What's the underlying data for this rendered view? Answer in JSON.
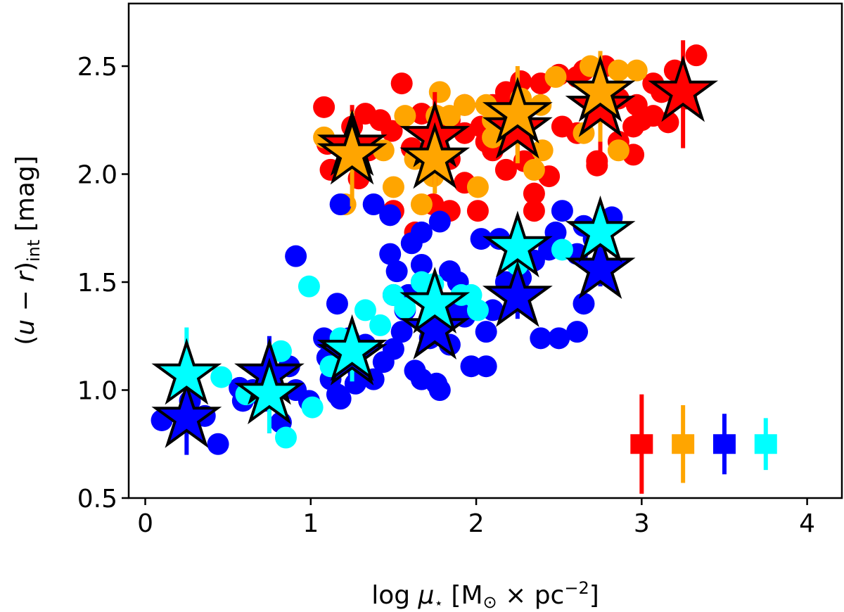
{
  "chart_data": {
    "type": "scatter",
    "title": "",
    "xlabel": {
      "prefix": "log ",
      "mu": "μ",
      "star": "⋆",
      "open": "  [M",
      "sun": "⊙",
      "mid": " × pc",
      "exp": "−2",
      "close": "]"
    },
    "ylabel": {
      "open": "(",
      "u": "u",
      "minus": " − ",
      "r": "r",
      "close": ")",
      "sub": "int",
      "unit": " [mag]"
    },
    "xlim": [
      -0.1,
      4.21
    ],
    "ylim": [
      0.5,
      2.79
    ],
    "xticks": [
      0,
      1,
      2,
      3,
      4
    ],
    "xtick_labels": [
      "0",
      "1",
      "2",
      "3",
      "4"
    ],
    "yticks": [
      0.5,
      1.0,
      1.5,
      2.0,
      2.5
    ],
    "ytick_labels": [
      "0.5",
      "1.0",
      "1.5",
      "2.0",
      "2.5"
    ],
    "grid": false,
    "legend": "none",
    "colors": {
      "red": "#ff0000",
      "orange": "#ffa500",
      "blue": "#0000ff",
      "cyan": "#00ffff"
    },
    "series": [
      {
        "color": "red",
        "points": [
          [
            1.08,
            2.31
          ],
          [
            1.33,
            2.28
          ],
          [
            1.49,
            2.2
          ],
          [
            1.61,
            2.12
          ],
          [
            1.84,
            2.07
          ],
          [
            1.93,
            2.19
          ],
          [
            2.06,
            2.15
          ],
          [
            2.1,
            2.11
          ],
          [
            2.18,
            2.02
          ],
          [
            2.29,
            2.06
          ],
          [
            2.35,
            1.91
          ],
          [
            2.52,
            2.22
          ],
          [
            2.61,
            2.19
          ],
          [
            2.73,
            2.06
          ],
          [
            2.86,
            2.15
          ],
          [
            2.95,
            2.22
          ],
          [
            3.07,
            2.27
          ],
          [
            3.16,
            2.24
          ],
          [
            3.27,
            2.35
          ],
          [
            3.33,
            2.55
          ],
          [
            3.07,
            2.42
          ],
          [
            3.0,
            2.25
          ],
          [
            2.78,
            2.5
          ],
          [
            2.65,
            2.48
          ],
          [
            2.44,
            1.99
          ],
          [
            2.35,
            1.83
          ],
          [
            2.18,
            2.38
          ],
          [
            2.1,
            2.32
          ],
          [
            1.93,
            2.32
          ],
          [
            1.84,
            2.25
          ],
          [
            1.67,
            2.28
          ],
          [
            1.5,
            1.83
          ],
          [
            1.63,
            1.73
          ],
          [
            1.74,
            1.86
          ],
          [
            1.84,
            1.83
          ],
          [
            2.01,
            1.83
          ],
          [
            1.12,
            2.02
          ],
          [
            1.42,
            2.25
          ],
          [
            1.29,
            1.98
          ],
          [
            2.5,
            2.46
          ],
          [
            2.61,
            2.45
          ],
          [
            2.86,
            2.35
          ],
          [
            2.97,
            2.32
          ],
          [
            1.1,
            2.14
          ],
          [
            1.25,
            2.22
          ],
          [
            2.27,
            2.43
          ],
          [
            2.39,
            2.42
          ],
          [
            2.73,
            2.04
          ],
          [
            3.2,
            2.48
          ],
          [
            3.12,
            2.38
          ],
          [
            1.55,
            2.42
          ],
          [
            2.95,
            2.09
          ],
          [
            2.03,
            2.22
          ],
          [
            1.35,
            2.11
          ],
          [
            1.93,
            1.96
          ]
        ],
        "medians": [
          [
            1.25,
            2.13,
            1.97,
            2.32
          ],
          [
            1.75,
            2.17,
            1.95,
            2.38
          ],
          [
            2.25,
            2.21,
            2.05,
            2.36
          ],
          [
            2.75,
            2.31,
            2.09,
            2.49
          ],
          [
            3.25,
            2.38,
            2.12,
            2.62
          ]
        ],
        "typical_error": {
          "x": 3.0,
          "y": 0.75,
          "low": 0.52,
          "high": 0.98
        }
      },
      {
        "color": "orange",
        "points": [
          [
            1.08,
            2.17
          ],
          [
            1.44,
            2.11
          ],
          [
            1.5,
            1.94
          ],
          [
            1.57,
            2.27
          ],
          [
            1.63,
            2.07
          ],
          [
            1.67,
            1.86
          ],
          [
            1.76,
            2.27
          ],
          [
            1.84,
            2.27
          ],
          [
            1.93,
            2.32
          ],
          [
            2.01,
            1.94
          ],
          [
            2.1,
            2.25
          ],
          [
            2.27,
            2.35
          ],
          [
            2.39,
            2.32
          ],
          [
            2.4,
            2.11
          ],
          [
            2.35,
            2.02
          ],
          [
            2.1,
            2.17
          ],
          [
            2.06,
            2.32
          ],
          [
            2.48,
            2.45
          ],
          [
            2.69,
            2.5
          ],
          [
            2.86,
            2.48
          ],
          [
            2.97,
            2.48
          ],
          [
            2.86,
            2.11
          ],
          [
            2.65,
            2.19
          ],
          [
            1.78,
            2.38
          ],
          [
            1.74,
            1.99
          ],
          [
            1.21,
            1.86
          ]
        ],
        "medians": [
          [
            1.25,
            2.09,
            1.85,
            2.29
          ],
          [
            1.75,
            2.07,
            1.91,
            2.22
          ],
          [
            2.25,
            2.28,
            2.05,
            2.5
          ],
          [
            2.75,
            2.38,
            2.15,
            2.57
          ]
        ],
        "typical_error": {
          "x": 3.25,
          "y": 0.75,
          "low": 0.57,
          "high": 0.93
        }
      },
      {
        "color": "blue",
        "points": [
          [
            0.1,
            0.86
          ],
          [
            0.44,
            0.75
          ],
          [
            0.36,
            0.88
          ],
          [
            0.27,
            0.95
          ],
          [
            0.91,
            1.0
          ],
          [
            0.99,
            0.95
          ],
          [
            1.08,
            1.24
          ],
          [
            1.12,
            1.05
          ],
          [
            1.16,
            1.14
          ],
          [
            1.23,
            1.24
          ],
          [
            1.29,
            1.08
          ],
          [
            1.38,
            1.05
          ],
          [
            1.44,
            1.13
          ],
          [
            1.5,
            1.19
          ],
          [
            1.55,
            1.27
          ],
          [
            1.57,
            1.37
          ],
          [
            1.59,
            1.44
          ],
          [
            1.63,
            1.09
          ],
          [
            1.67,
            1.05
          ],
          [
            1.72,
            1.24
          ],
          [
            1.76,
            1.03
          ],
          [
            1.78,
            1.0
          ],
          [
            1.84,
            1.21
          ],
          [
            1.89,
            1.37
          ],
          [
            1.93,
            1.34
          ],
          [
            1.97,
            1.11
          ],
          [
            2.06,
            1.11
          ],
          [
            2.06,
            1.27
          ],
          [
            2.1,
            1.37
          ],
          [
            2.18,
            1.5
          ],
          [
            2.27,
            1.52
          ],
          [
            2.35,
            1.6
          ],
          [
            2.44,
            1.65
          ],
          [
            2.48,
            1.73
          ],
          [
            2.52,
            1.83
          ],
          [
            2.61,
            1.63
          ],
          [
            2.65,
            1.76
          ],
          [
            2.71,
            1.7
          ],
          [
            2.82,
            1.8
          ],
          [
            2.39,
            1.24
          ],
          [
            2.5,
            1.24
          ],
          [
            2.61,
            1.27
          ],
          [
            2.65,
            1.4
          ],
          [
            1.33,
            1.21
          ],
          [
            1.16,
            0.98
          ],
          [
            1.18,
            0.96
          ],
          [
            0.91,
            1.62
          ],
          [
            1.16,
            1.4
          ],
          [
            1.38,
            1.86
          ],
          [
            1.48,
            1.81
          ],
          [
            1.48,
            1.63
          ],
          [
            1.61,
            1.68
          ],
          [
            1.67,
            1.73
          ],
          [
            1.78,
            1.78
          ],
          [
            1.89,
            1.5
          ],
          [
            1.5,
            1.44
          ],
          [
            1.52,
            1.55
          ],
          [
            1.84,
            1.55
          ],
          [
            1.67,
            1.58
          ],
          [
            2.03,
            1.7
          ],
          [
            2.14,
            1.7
          ],
          [
            0.65,
            1.0
          ],
          [
            0.87,
            1.11
          ],
          [
            0.57,
            1.01
          ],
          [
            0.82,
            0.85
          ],
          [
            1.1,
            1.15
          ],
          [
            1.27,
            1.03
          ],
          [
            1.18,
            1.86
          ],
          [
            1.67,
            1.5
          ],
          [
            0.59,
            0.95
          ],
          [
            0.72,
            0.95
          ]
        ],
        "medians": [
          [
            0.25,
            0.87,
            0.7,
            1.05
          ],
          [
            0.75,
            1.07,
            0.8,
            1.25
          ],
          [
            1.25,
            1.16,
            1.06,
            1.26
          ],
          [
            1.75,
            1.28,
            1.2,
            1.38
          ],
          [
            2.25,
            1.43,
            1.33,
            1.52
          ],
          [
            2.75,
            1.56,
            1.48,
            1.66
          ]
        ],
        "typical_error": {
          "x": 3.5,
          "y": 0.75,
          "low": 0.61,
          "high": 0.89
        }
      },
      {
        "color": "cyan",
        "points": [
          [
            0.99,
            1.48
          ],
          [
            1.01,
            0.92
          ],
          [
            0.85,
            0.78
          ],
          [
            0.82,
            1.18
          ],
          [
            1.42,
            1.3
          ],
          [
            1.33,
            1.37
          ],
          [
            1.5,
            1.44
          ],
          [
            1.67,
            1.5
          ],
          [
            1.74,
            1.49
          ],
          [
            2.01,
            1.37
          ],
          [
            1.97,
            1.44
          ],
          [
            1.91,
            1.44
          ],
          [
            2.25,
            1.58
          ],
          [
            2.52,
            1.65
          ],
          [
            1.57,
            1.38
          ],
          [
            1.12,
            1.11
          ],
          [
            0.61,
            0.98
          ],
          [
            0.46,
            1.06
          ],
          [
            1.18,
            1.24
          ]
        ],
        "medians": [
          [
            0.25,
            1.07,
            0.87,
            1.29
          ],
          [
            0.75,
            0.98,
            0.8,
            1.12
          ],
          [
            1.25,
            1.18,
            1.04,
            1.28
          ],
          [
            1.75,
            1.4,
            1.3,
            1.48
          ],
          [
            2.25,
            1.66,
            1.58,
            1.75
          ],
          [
            2.75,
            1.73,
            1.65,
            1.8
          ]
        ],
        "typical_error": {
          "x": 3.75,
          "y": 0.75,
          "low": 0.63,
          "high": 0.87
        }
      }
    ]
  }
}
